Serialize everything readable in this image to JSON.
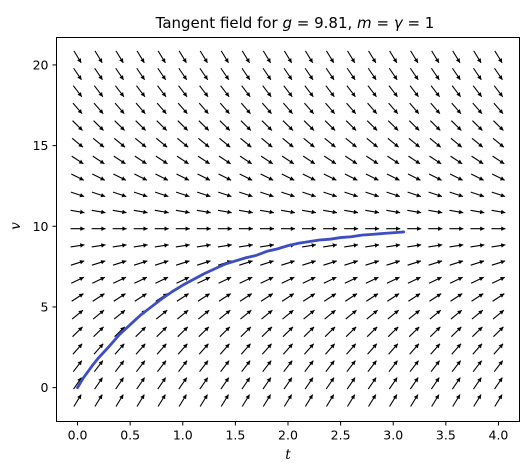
{
  "chart_data": {
    "type": "quiver",
    "title": {
      "prefix": "Tangent field for ",
      "g_symbol": "g",
      "g_value": " = 9.81, ",
      "m_symbol": "m",
      "eq1": " = ",
      "gamma_symbol": "γ",
      "eq2": " = 1"
    },
    "xlabel": "t",
    "ylabel": "v",
    "xlim": [
      -0.2,
      4.2
    ],
    "ylim": [
      -2.1,
      21.7
    ],
    "xticks": [
      0.0,
      0.5,
      1.0,
      1.5,
      2.0,
      2.5,
      3.0,
      3.5,
      4.0
    ],
    "xtick_labels": [
      "0.0",
      "0.5",
      "1.0",
      "1.5",
      "2.0",
      "2.5",
      "3.0",
      "3.5",
      "4.0"
    ],
    "yticks": [
      0,
      5,
      10,
      15,
      20
    ],
    "ytick_labels": [
      "0",
      "5",
      "10",
      "15",
      "20"
    ],
    "grid": false,
    "field": {
      "equation": "dv/dt = g - (gamma/m) v",
      "g": 9.81,
      "m": 1,
      "gamma": 1,
      "t_start": 0.0,
      "t_stop": 4.0,
      "t_count": 21,
      "v_start": -0.8,
      "v_stop": 20.5,
      "v_count": 21,
      "color": "#000000"
    },
    "series": [
      {
        "type": "line",
        "color": "#3d4dc4",
        "x": [
          0.0,
          0.05,
          0.1,
          0.15,
          0.2,
          0.25,
          0.3,
          0.4,
          0.5,
          0.6,
          0.7,
          0.8,
          0.9,
          1.0,
          1.1,
          1.2,
          1.3,
          1.4,
          1.5,
          1.6,
          1.7,
          1.8,
          1.9,
          2.0,
          2.1,
          2.2,
          2.3,
          2.4,
          2.5,
          2.6,
          2.7,
          2.8,
          2.9,
          3.0,
          3.1
        ],
        "y": [
          0.0,
          0.55,
          1.0,
          1.45,
          1.85,
          2.2,
          2.55,
          3.3,
          3.9,
          4.5,
          5.0,
          5.5,
          5.95,
          6.35,
          6.7,
          7.05,
          7.35,
          7.65,
          7.85,
          8.05,
          8.2,
          8.45,
          8.6,
          8.8,
          8.95,
          9.05,
          9.15,
          9.2,
          9.3,
          9.35,
          9.45,
          9.5,
          9.55,
          9.6,
          9.65
        ]
      }
    ]
  }
}
